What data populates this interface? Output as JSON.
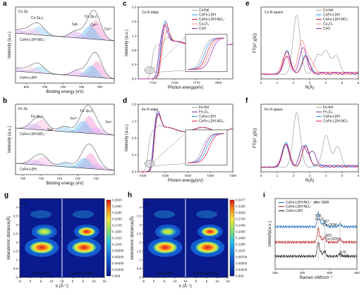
{
  "chart_data": [
    {
      "panel": "a",
      "type": "area",
      "xlabel": "Binding energy (eV)",
      "ylabel": "Intensity (a.u.)",
      "x_ticks": [
        800,
        795,
        790,
        785,
        780
      ],
      "xlim": [
        803,
        776
      ],
      "title_labels": [
        "Co 2p",
        "Co 2p₁/₂",
        "Co 2p₃/₂",
        "Sat.",
        "Co²⁺",
        "Co³⁺"
      ],
      "traces": [
        {
          "name": "CoFe-LDH-NO₃⁻",
          "peaks": [
            {
              "x": 781.0,
              "amp": 1.0
            },
            {
              "x": 782.6,
              "amp": 0.7
            },
            {
              "x": 786.5,
              "amp": 0.35
            },
            {
              "x": 796.5,
              "amp": 0.45
            },
            {
              "x": 798.5,
              "amp": 0.3
            },
            {
              "x": 802,
              "amp": 0.2
            }
          ]
        },
        {
          "name": "CoFe-LDH",
          "peaks": [
            {
              "x": 780.7,
              "amp": 0.85
            },
            {
              "x": 782.2,
              "amp": 0.6
            },
            {
              "x": 786.0,
              "amp": 0.3
            },
            {
              "x": 796.4,
              "amp": 0.35
            },
            {
              "x": 798.3,
              "amp": 0.25
            },
            {
              "x": 802,
              "amp": 0.18
            }
          ]
        }
      ]
    },
    {
      "panel": "b",
      "type": "area",
      "xlabel": "Binding energy (eV)",
      "ylabel": "Intensity (a.u.)",
      "x_ticks": [
        730,
        725,
        720,
        715,
        710
      ],
      "xlim": [
        732,
        705
      ],
      "title_labels": [
        "Fe 2p",
        "Fe 2p₁/₂",
        "Fe 2p₃/₂",
        "Fe³⁺",
        "Fe²⁺",
        "Sat."
      ],
      "traces": [
        {
          "name": "CoFe-LDH-NO₃⁻",
          "peaks": [
            {
              "x": 711.8,
              "amp": 1.0
            },
            {
              "x": 713.5,
              "amp": 0.7
            },
            {
              "x": 709.8,
              "amp": 0.4
            },
            {
              "x": 718.5,
              "amp": 0.3
            },
            {
              "x": 724.8,
              "amp": 0.6
            },
            {
              "x": 727.0,
              "amp": 0.35
            }
          ]
        },
        {
          "name": "CoFe-LDH",
          "peaks": [
            {
              "x": 711.5,
              "amp": 0.9
            },
            {
              "x": 713.2,
              "amp": 0.6
            },
            {
              "x": 709.6,
              "amp": 0.3
            },
            {
              "x": 718.2,
              "amp": 0.25
            },
            {
              "x": 724.5,
              "amp": 0.5
            },
            {
              "x": 726.8,
              "amp": 0.3
            }
          ]
        }
      ]
    },
    {
      "panel": "c",
      "type": "line",
      "label": "Co K-edge",
      "xlabel": "Photon energy(eV)",
      "ylabel": "Intensity (a.u.)",
      "xlim": [
        7690,
        7820
      ],
      "ylim": [
        0,
        2.0
      ],
      "x_ticks": [
        7710,
        7740,
        7770,
        7800
      ],
      "y_ticks": [
        0.0,
        0.4,
        0.8,
        1.2,
        1.6,
        2.0
      ],
      "series": [
        {
          "name": "Co-foil",
          "color": "#aaaaaa",
          "edge": 7709,
          "peak": 1.15,
          "peak_x": 7730
        },
        {
          "name": "CoFe-LDH",
          "color": "#2196f3",
          "edge": 7719,
          "peak": 1.62,
          "peak_x": 7727
        },
        {
          "name": "CoFe-LDH-NO₃⁻",
          "color": "#e0153a",
          "edge": 7720,
          "peak": 1.55,
          "peak_x": 7728
        },
        {
          "name": "Co₃O₄",
          "color": "#ff8a80",
          "edge": 7721,
          "peak": 1.35,
          "peak_x": 7730
        },
        {
          "name": "CoO",
          "color": "#9c27b0",
          "edge": 7717,
          "peak": 1.5,
          "peak_x": 7726
        }
      ]
    },
    {
      "panel": "d",
      "type": "line",
      "label": "Fe K-edge",
      "xlabel": "Photon energy(eV)",
      "ylabel": "Intensity (a.u.)",
      "xlim": [
        7090,
        7300
      ],
      "ylim": [
        0,
        1.6
      ],
      "x_ticks": [
        7100,
        7150,
        7200,
        7250,
        7300
      ],
      "y_ticks": [
        0.0,
        0.4,
        0.8,
        1.2,
        1.6
      ],
      "series": [
        {
          "name": "Fe-foil",
          "color": "#aaaaaa",
          "edge": 7112,
          "peak": 1.1,
          "peak_x": 7135
        },
        {
          "name": "Fe₂O₃",
          "color": "#7b1fa2",
          "edge": 7122,
          "peak": 1.45,
          "peak_x": 7133
        },
        {
          "name": "CoFe-LDH",
          "color": "#2196f3",
          "edge": 7123,
          "peak": 1.4,
          "peak_x": 7133
        },
        {
          "name": "CoFe-LDH-NO₃⁻",
          "color": "#e0153a",
          "edge": 7124,
          "peak": 1.38,
          "peak_x": 7134
        }
      ]
    },
    {
      "panel": "e",
      "type": "line",
      "label": "Co R-space",
      "xlabel": "R(Å)",
      "ylabel": "FT(k²·χ(k))",
      "xlim": [
        0,
        6
      ],
      "x_ticks": [
        0,
        1,
        2,
        3,
        4,
        5,
        6
      ],
      "series": [
        {
          "name": "Co-foil",
          "color": "#aaaaaa",
          "peaks": [
            [
              2.2,
              1.0
            ],
            [
              3.5,
              0.28
            ],
            [
              4.0,
              0.35
            ],
            [
              4.6,
              0.3
            ]
          ]
        },
        {
          "name": "CoFe-LDH",
          "color": "#2196f3",
          "peaks": [
            [
              1.6,
              0.4
            ],
            [
              2.75,
              0.33
            ]
          ]
        },
        {
          "name": "CoFe-LDH-NO₃⁻",
          "color": "#e0153a",
          "peaks": [
            [
              1.6,
              0.38
            ],
            [
              2.75,
              0.3
            ]
          ]
        },
        {
          "name": "Co₃O₄",
          "color": "#ff8a80",
          "peaks": [
            [
              1.5,
              0.32
            ],
            [
              2.5,
              0.55
            ],
            [
              3.0,
              0.25
            ]
          ]
        },
        {
          "name": "CoO",
          "color": "#9c27b0",
          "peaks": [
            [
              1.6,
              0.3
            ],
            [
              2.6,
              0.45
            ]
          ]
        }
      ]
    },
    {
      "panel": "f",
      "type": "line",
      "label": "Fe R-space",
      "xlabel": "R(Å)",
      "ylabel": "FT(k²·χ(k))",
      "xlim": [
        0,
        6
      ],
      "x_ticks": [
        0,
        1,
        2,
        3,
        4,
        5,
        6
      ],
      "series": [
        {
          "name": "Fe-foil",
          "color": "#aaaaaa",
          "peaks": [
            [
              2.2,
              1.0
            ],
            [
              4.0,
              0.55
            ],
            [
              4.7,
              0.35
            ]
          ]
        },
        {
          "name": "Fe₂O₃",
          "color": "#7b1fa2",
          "peaks": [
            [
              1.5,
              0.42
            ],
            [
              2.6,
              0.38
            ],
            [
              3.2,
              0.25
            ]
          ]
        },
        {
          "name": "CoFe-LDH",
          "color": "#2196f3",
          "peaks": [
            [
              1.55,
              0.45
            ],
            [
              2.75,
              0.4
            ]
          ]
        },
        {
          "name": "CoFe-LDH-NO₃⁻",
          "color": "#e0153a",
          "peaks": [
            [
              1.55,
              0.42
            ],
            [
              2.75,
              0.38
            ]
          ]
        }
      ]
    },
    {
      "panel": "g",
      "type": "heatmap",
      "element": "Co",
      "xlabel": "k (Å⁻¹)",
      "ylabel": "Interatomic distance(Å)",
      "x_ticks": [
        -5,
        0,
        5,
        10,
        15
      ],
      "y_ticks": [
        0,
        0.5,
        1,
        1.5,
        2,
        2.5,
        3,
        3.5,
        4
      ],
      "maps": [
        "CoFe-LDH",
        "CoFe-LDH-NO₃⁻"
      ],
      "colorbar": [
        "0.2620",
        "0.2460",
        "0.2290",
        "0.2060",
        "0.1740",
        "0.1560",
        "0.1310",
        "0.1140",
        "0.08560",
        "0.06560",
        "0.04000",
        "0.02000",
        "0.000"
      ]
    },
    {
      "panel": "h",
      "type": "heatmap",
      "element": "Fe",
      "xlabel": "k (Å⁻¹)",
      "ylabel": "Interatomic distance(Å)",
      "x_ticks": [
        -5,
        0,
        5,
        10,
        15
      ],
      "y_ticks": [
        0,
        0.5,
        1,
        1.5,
        2,
        2.5,
        3,
        3.5,
        4
      ],
      "maps": [
        "CoFe-LDH",
        "CoFe-LDH-NO₃⁻"
      ],
      "colorbar": [
        "0.3477",
        "0.3185",
        "0.2925",
        "0.2700",
        "0.2400",
        "0.2000",
        "0.1600",
        "0.1300",
        "0.1100",
        "0.08700",
        "0.05860",
        "0.02930",
        "0.000"
      ]
    },
    {
      "panel": "i",
      "type": "line",
      "xlabel": "Raman shift/cm⁻¹",
      "ylabel": "Intensity(a.u.)",
      "xlim": [
        200,
        800
      ],
      "x_ticks": [
        200,
        400,
        600,
        800
      ],
      "annotations": [
        "516",
        "Fe-O",
        "537",
        "Co-OOH",
        "563",
        "Co-OOH",
        "676",
        "Co-O"
      ],
      "series": [
        {
          "name": "CoFe-LDH-NO₃⁻ after OER",
          "color": "#1565c0"
        },
        {
          "name": "CoFe-LDH-NO₃⁻",
          "color": "#b71c1c"
        },
        {
          "name": "CoFe-LDH",
          "color": "#111111"
        }
      ]
    }
  ]
}
